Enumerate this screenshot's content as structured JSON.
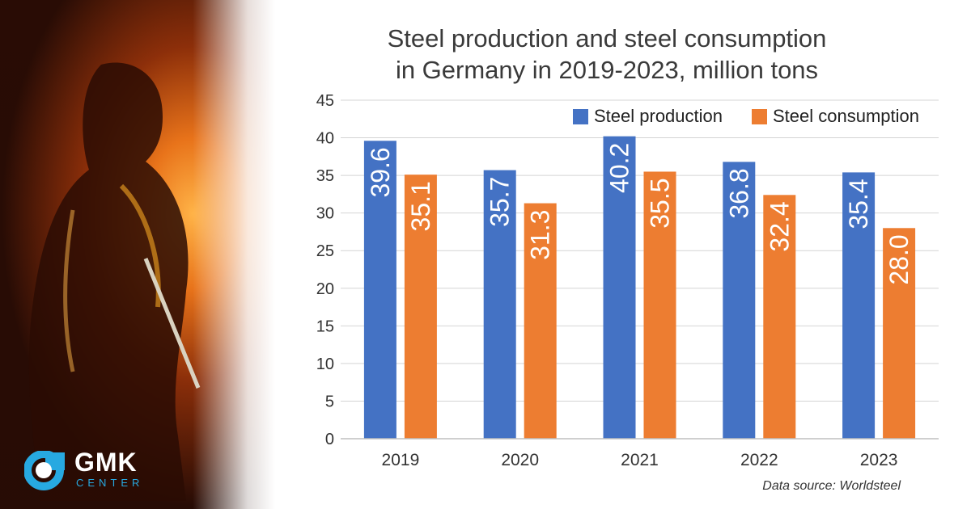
{
  "chart_data": {
    "type": "bar",
    "title_lines": [
      "Steel production and steel consumption",
      "in Germany in 2019-2023, million tons"
    ],
    "categories": [
      "2019",
      "2020",
      "2021",
      "2022",
      "2023"
    ],
    "series": [
      {
        "name": "Steel production",
        "values": [
          39.6,
          35.7,
          40.2,
          36.8,
          35.4
        ],
        "labels": [
          "39.6",
          "35.7",
          "40.2",
          "36.8",
          "35.4"
        ],
        "color": "#4472c4"
      },
      {
        "name": "Steel consumption",
        "values": [
          35.1,
          31.3,
          35.5,
          32.4,
          28.0
        ],
        "labels": [
          "35.1",
          "31.3",
          "35.5",
          "32.4",
          "28.0"
        ],
        "color": "#ed7d31"
      }
    ],
    "yticks": [
      "0",
      "5",
      "10",
      "15",
      "20",
      "25",
      "30",
      "35",
      "40",
      "45"
    ],
    "ylim": [
      0,
      45
    ],
    "grid": true,
    "legend_position": "top-right"
  },
  "source": "Data source: Worldsteel",
  "logo": {
    "name": "GMK",
    "sub": "CENTER"
  }
}
